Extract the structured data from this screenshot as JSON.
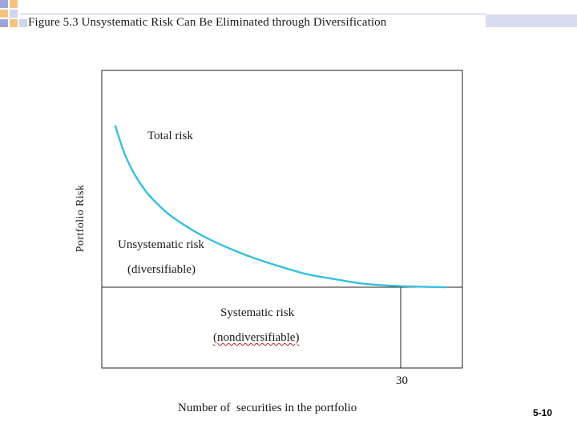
{
  "title": "Figure 5.3 Unsystematic Risk Can Be Eliminated through Diversification",
  "slide_number": "5-10",
  "theme": {
    "curve_color": "#33c0e0",
    "square_blue": "#9ea6d8",
    "square_orange": "#f4c47e",
    "square_light": "#d0d4ec"
  },
  "chart_data": {
    "type": "line",
    "title": "Figure 5.3 Unsystematic Risk Can Be Eliminated through Diversification",
    "xlabel": "Number of  securities in the portfolio",
    "ylabel": "Portfolio Risk",
    "x_ticks": [
      "30"
    ],
    "annotations": {
      "total_risk": "Total risk",
      "unsystematic": "Unsystematic risk",
      "unsystematic_sub": "(diversifiable)",
      "systematic": "Systematic risk",
      "systematic_sub": "(nondiversifiable)"
    },
    "series": [
      {
        "x": [
          1,
          2,
          3,
          4,
          5,
          7,
          9,
          11,
          13,
          15,
          17,
          20,
          23,
          26,
          29,
          32,
          35,
          39
        ],
        "y": [
          0.86,
          0.72,
          0.62,
          0.545,
          0.485,
          0.395,
          0.33,
          0.275,
          0.23,
          0.19,
          0.155,
          0.11,
          0.07,
          0.045,
          0.022,
          0.01,
          0.004,
          0.0
        ]
      }
    ]
  }
}
